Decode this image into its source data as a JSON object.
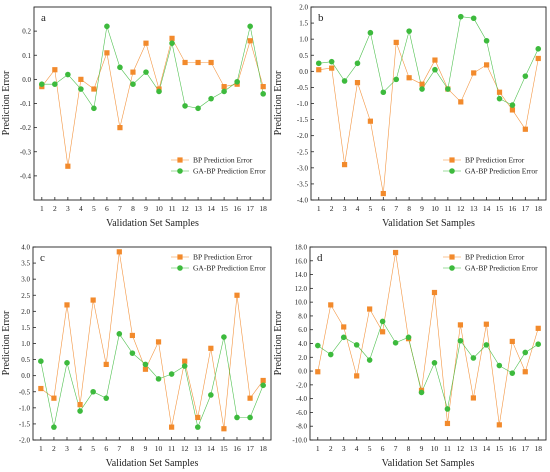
{
  "chart_data": [
    {
      "panel": "a",
      "type": "line",
      "xlabel": "Validation Set Samples",
      "ylabel": "Prediction Error",
      "x": [
        1,
        2,
        3,
        4,
        5,
        6,
        7,
        8,
        9,
        10,
        11,
        12,
        13,
        14,
        15,
        16,
        17,
        18
      ],
      "ylim": [
        -0.5,
        0.3
      ],
      "yticks": [
        -0.4,
        -0.3,
        -0.2,
        -0.1,
        0.0,
        0.1,
        0.2
      ],
      "ytick_labels": [
        "-0.4",
        "-0.3",
        "-0.2",
        "-0.1",
        "0.0",
        "0.1",
        "0.2"
      ],
      "legend_position": "bottom-right",
      "series": [
        {
          "name": "BP Prediction Error",
          "color": "#f28a2c",
          "marker": "square",
          "values": [
            -0.03,
            0.04,
            -0.36,
            0.0,
            -0.04,
            0.11,
            -0.2,
            0.03,
            0.15,
            -0.04,
            0.17,
            0.07,
            0.07,
            0.07,
            -0.03,
            -0.02,
            0.16,
            -0.03
          ]
        },
        {
          "name": "GA-BP Prediction Error",
          "color": "#3dba3d",
          "marker": "circle",
          "values": [
            -0.02,
            -0.02,
            0.02,
            -0.04,
            -0.12,
            0.22,
            0.05,
            -0.02,
            0.03,
            -0.05,
            0.15,
            -0.11,
            -0.12,
            -0.08,
            -0.05,
            -0.01,
            0.22,
            -0.06
          ]
        }
      ]
    },
    {
      "panel": "b",
      "type": "line",
      "xlabel": "Validation Set Samples",
      "ylabel": "Prediction Error",
      "x": [
        1,
        2,
        3,
        4,
        5,
        6,
        7,
        8,
        9,
        10,
        11,
        12,
        13,
        14,
        15,
        16,
        17,
        18
      ],
      "ylim": [
        -4.0,
        2.0
      ],
      "yticks": [
        -4.0,
        -3.5,
        -3.0,
        -2.5,
        -2.0,
        -1.5,
        -1.0,
        -0.5,
        0.0,
        0.5,
        1.0,
        1.5,
        2.0
      ],
      "ytick_labels": [
        "-4.0",
        "-3.5",
        "-3.0",
        "-2.5",
        "-2.0",
        "-1.5",
        "-1.0",
        "-0.5",
        "0.0",
        "0.5",
        "1.0",
        "1.5",
        "2.0"
      ],
      "legend_position": "bottom-right",
      "series": [
        {
          "name": "BP Prediction Error",
          "color": "#f28a2c",
          "marker": "square",
          "values": [
            0.05,
            0.1,
            -2.9,
            -0.35,
            -1.55,
            -3.8,
            0.9,
            -0.2,
            -0.4,
            0.35,
            -0.55,
            -0.95,
            -0.05,
            0.2,
            -0.65,
            -1.2,
            -1.8,
            0.4
          ]
        },
        {
          "name": "GA-BP Prediction Error",
          "color": "#3dba3d",
          "marker": "circle",
          "values": [
            0.25,
            0.3,
            -0.3,
            0.25,
            1.2,
            -0.65,
            -0.25,
            1.25,
            -0.55,
            0.05,
            -0.55,
            1.7,
            1.65,
            0.95,
            -0.85,
            -1.05,
            -0.15,
            0.7
          ]
        }
      ]
    },
    {
      "panel": "c",
      "type": "line",
      "xlabel": "Validation Set Samples",
      "ylabel": "Prediction Error",
      "x": [
        1,
        2,
        3,
        4,
        5,
        6,
        7,
        8,
        9,
        10,
        11,
        12,
        13,
        14,
        15,
        16,
        17,
        18
      ],
      "ylim": [
        -2.0,
        4.0
      ],
      "yticks": [
        -2.0,
        -1.5,
        -1.0,
        -0.5,
        0.0,
        0.5,
        1.0,
        1.5,
        2.0,
        2.5,
        3.0,
        3.5,
        4.0
      ],
      "ytick_labels": [
        "-2.0",
        "-1.5",
        "-1.0",
        "-0.5",
        "0.0",
        "0.5",
        "1.0",
        "1.5",
        "2.0",
        "2.5",
        "3.0",
        "3.5",
        "4.0"
      ],
      "legend_position": "top-right",
      "series": [
        {
          "name": "BP Prediction Error",
          "color": "#f28a2c",
          "marker": "square",
          "values": [
            -0.4,
            -0.7,
            2.2,
            -0.9,
            2.35,
            0.35,
            3.85,
            1.25,
            0.2,
            1.05,
            -1.6,
            0.45,
            -1.3,
            0.85,
            -1.65,
            2.5,
            -0.7,
            -0.15
          ]
        },
        {
          "name": "GA-BP Prediction Error",
          "color": "#3dba3d",
          "marker": "circle",
          "values": [
            0.45,
            -1.6,
            0.4,
            -1.1,
            -0.5,
            -0.7,
            1.3,
            0.7,
            0.35,
            -0.1,
            0.05,
            0.3,
            -1.6,
            -0.6,
            1.2,
            -1.3,
            -1.3,
            -0.3
          ]
        }
      ]
    },
    {
      "panel": "d",
      "type": "line",
      "xlabel": "Validation Set Samples",
      "ylabel": "Prediction Error",
      "x": [
        1,
        2,
        3,
        4,
        5,
        6,
        7,
        8,
        9,
        10,
        11,
        12,
        13,
        14,
        15,
        16,
        17,
        18
      ],
      "ylim": [
        -10.0,
        18.0
      ],
      "yticks": [
        -10.0,
        -8.0,
        -6.0,
        -4.0,
        -2.0,
        0.0,
        2.0,
        4.0,
        6.0,
        8.0,
        10.0,
        12.0,
        14.0,
        16.0,
        18.0
      ],
      "ytick_labels": [
        "-10.0",
        "-8.0",
        "-6.0",
        "-4.0",
        "-2.0",
        "0.0",
        "2.0",
        "4.0",
        "6.0",
        "8.0",
        "10.0",
        "12.0",
        "14.0",
        "16.0",
        "18.0"
      ],
      "legend_position": "top-right",
      "series": [
        {
          "name": "BP Prediction Error",
          "color": "#f28a2c",
          "marker": "square",
          "values": [
            -0.1,
            9.6,
            6.4,
            -0.7,
            9.0,
            5.7,
            17.2,
            4.7,
            -2.8,
            11.4,
            -7.6,
            6.7,
            -3.9,
            6.8,
            -7.8,
            4.3,
            -0.1,
            6.2
          ]
        },
        {
          "name": "GA-BP Prediction Error",
          "color": "#3dba3d",
          "marker": "circle",
          "values": [
            3.7,
            2.4,
            4.9,
            3.8,
            1.6,
            7.2,
            4.1,
            4.9,
            -3.1,
            1.2,
            -5.5,
            4.4,
            1.9,
            3.8,
            0.8,
            -0.3,
            2.7,
            3.9
          ]
        }
      ]
    }
  ]
}
